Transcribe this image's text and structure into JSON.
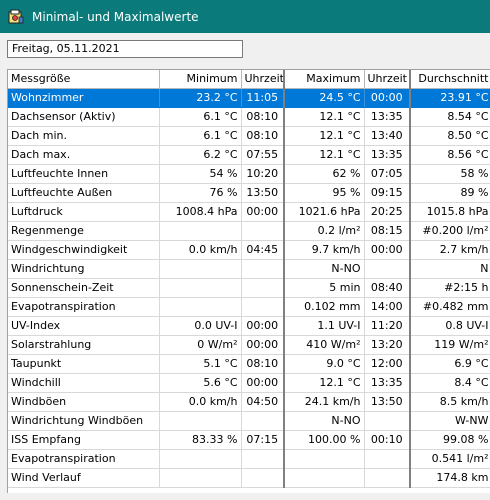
{
  "window": {
    "title": "Minimal- und Maximalwerte",
    "app_icon": "weather-station-icon"
  },
  "date_field": {
    "value": "Freitag, 05.11.2021"
  },
  "table": {
    "headers": [
      "Messgröße",
      "Minimum",
      "Uhrzeit",
      "Maximum",
      "Uhrzeit",
      "Durchschnitt"
    ],
    "selection_color": "#0078d7",
    "rows": [
      [
        "Wohnzimmer",
        "23.2 °C",
        "11:05",
        "24.5 °C",
        "00:00",
        "23.91 °C"
      ],
      [
        "Dachsensor (Aktiv)",
        "6.1 °C",
        "08:10",
        "12.1 °C",
        "13:35",
        "8.54 °C"
      ],
      [
        "Dach min.",
        "6.1 °C",
        "08:10",
        "12.1 °C",
        "13:40",
        "8.50 °C"
      ],
      [
        "Dach max.",
        "6.2 °C",
        "07:55",
        "12.1 °C",
        "13:35",
        "8.56 °C"
      ],
      [
        "Luftfeuchte Innen",
        "54 %",
        "10:20",
        "62 %",
        "07:05",
        "58 %"
      ],
      [
        "Luftfeuchte Außen",
        "76 %",
        "13:50",
        "95 %",
        "09:15",
        "89 %"
      ],
      [
        "Luftdruck",
        "1008.4 hPa",
        "00:00",
        "1021.6 hPa",
        "20:25",
        "1015.8 hPa"
      ],
      [
        "Regenmenge",
        "",
        "",
        "0.2 l/m²",
        "08:15",
        "#0.200 l/m²"
      ],
      [
        "Windgeschwindigkeit",
        "0.0 km/h",
        "04:45",
        "9.7 km/h",
        "00:00",
        "2.7 km/h"
      ],
      [
        "Windrichtung",
        "",
        "",
        "N-NO",
        "",
        "N"
      ],
      [
        "Sonnenschein-Zeit",
        "",
        "",
        "5 min",
        "08:40",
        "#2:15 h"
      ],
      [
        "Evapotranspiration",
        "",
        "",
        "0.102 mm",
        "14:00",
        "#0.482 mm"
      ],
      [
        "UV-Index",
        "0.0 UV-I",
        "00:00",
        "1.1 UV-I",
        "11:20",
        "0.8 UV-I"
      ],
      [
        "Solarstrahlung",
        "0 W/m²",
        "00:00",
        "410 W/m²",
        "13:20",
        "119 W/m²"
      ],
      [
        "Taupunkt",
        "5.1 °C",
        "08:10",
        "9.0 °C",
        "12:00",
        "6.9 °C"
      ],
      [
        "Windchill",
        "5.6 °C",
        "00:00",
        "12.1 °C",
        "13:35",
        "8.4 °C"
      ],
      [
        "Windböen",
        "0.0 km/h",
        "04:50",
        "24.1 km/h",
        "13:50",
        "8.5 km/h"
      ],
      [
        "Windrichtung Windböen",
        "",
        "",
        "N-NO",
        "",
        "W-NW"
      ],
      [
        "ISS Empfang",
        "83.33 %",
        "07:15",
        "100.00 %",
        "00:10",
        "99.08 %"
      ],
      [
        "Evapotranspiration",
        "",
        "",
        "",
        "",
        "0.541 l/m²"
      ],
      [
        "Wind Verlauf",
        "",
        "",
        "",
        "",
        "174.8 km"
      ]
    ]
  }
}
